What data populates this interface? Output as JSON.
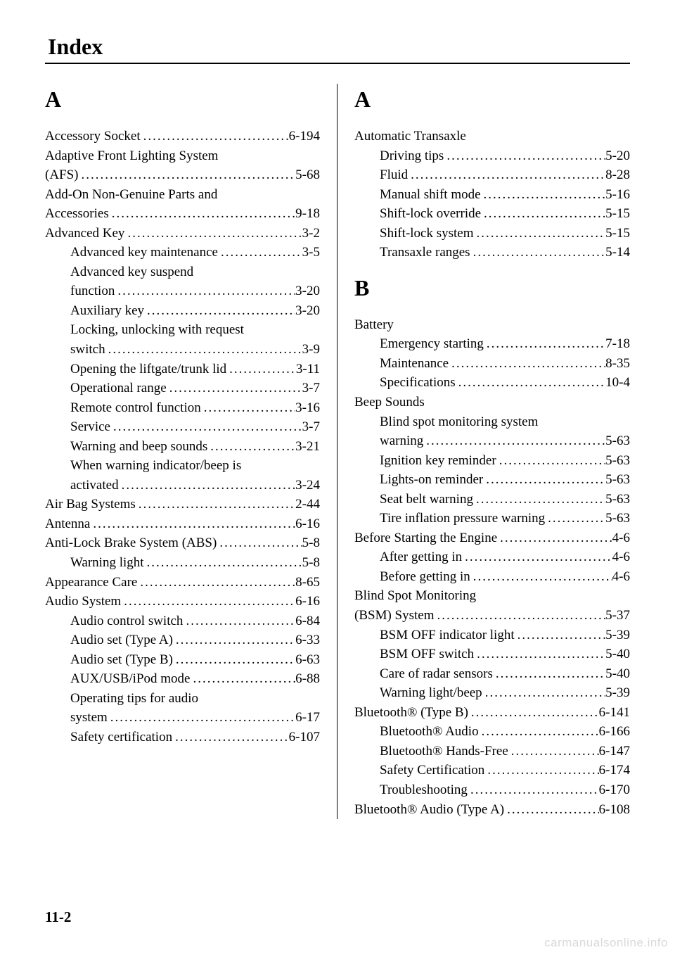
{
  "title": "Index",
  "page_number": "11-2",
  "watermark": "carmanualsonline.info",
  "columns": {
    "left": [
      {
        "type": "letter",
        "text": "A"
      },
      {
        "type": "entry",
        "label": "Accessory Socket",
        "page": "6-194",
        "indent": 0
      },
      {
        "type": "entry",
        "label": "Adaptive Front Lighting System",
        "indent": 0,
        "noPage": true
      },
      {
        "type": "entry",
        "label": "(AFS)",
        "page": "5-68",
        "indent": 0
      },
      {
        "type": "entry",
        "label": "Add-On Non-Genuine Parts and",
        "indent": 0,
        "noPage": true
      },
      {
        "type": "entry",
        "label": "Accessories",
        "page": "9-18",
        "indent": 0
      },
      {
        "type": "entry",
        "label": "Advanced Key",
        "page": "3-2",
        "indent": 0
      },
      {
        "type": "entry",
        "label": "Advanced key maintenance",
        "page": "3-5",
        "indent": 1
      },
      {
        "type": "entry",
        "label": "Advanced key suspend",
        "indent": 1,
        "noPage": true
      },
      {
        "type": "entry",
        "label": "function",
        "page": "3-20",
        "indent": 1
      },
      {
        "type": "entry",
        "label": "Auxiliary key",
        "page": "3-20",
        "indent": 1
      },
      {
        "type": "entry",
        "label": "Locking, unlocking with request",
        "indent": 1,
        "noPage": true
      },
      {
        "type": "entry",
        "label": "switch",
        "page": "3-9",
        "indent": 1
      },
      {
        "type": "entry",
        "label": "Opening the liftgate/trunk lid",
        "page": "3-11",
        "indent": 1
      },
      {
        "type": "entry",
        "label": "Operational range",
        "page": "3-7",
        "indent": 1
      },
      {
        "type": "entry",
        "label": "Remote control function",
        "page": "3-16",
        "indent": 1
      },
      {
        "type": "entry",
        "label": "Service",
        "page": "3-7",
        "indent": 1
      },
      {
        "type": "entry",
        "label": "Warning and beep sounds",
        "page": "3-21",
        "indent": 1
      },
      {
        "type": "entry",
        "label": "When warning indicator/beep is",
        "indent": 1,
        "noPage": true
      },
      {
        "type": "entry",
        "label": "activated",
        "page": "3-24",
        "indent": 1
      },
      {
        "type": "entry",
        "label": "Air Bag Systems",
        "page": "2-44",
        "indent": 0
      },
      {
        "type": "entry",
        "label": "Antenna",
        "page": "6-16",
        "indent": 0
      },
      {
        "type": "entry",
        "label": "Anti-Lock Brake System (ABS)",
        "page": "5-8",
        "indent": 0
      },
      {
        "type": "entry",
        "label": "Warning light",
        "page": "5-8",
        "indent": 1
      },
      {
        "type": "entry",
        "label": "Appearance Care",
        "page": "8-65",
        "indent": 0
      },
      {
        "type": "entry",
        "label": "Audio System",
        "page": "6-16",
        "indent": 0
      },
      {
        "type": "entry",
        "label": "Audio control switch",
        "page": "6-84",
        "indent": 1
      },
      {
        "type": "entry",
        "label": "Audio set (Type A)",
        "page": "6-33",
        "indent": 1
      },
      {
        "type": "entry",
        "label": "Audio set (Type B)",
        "page": "6-63",
        "indent": 1
      },
      {
        "type": "entry",
        "label": "AUX/USB/iPod mode",
        "page": "6-88",
        "indent": 1
      },
      {
        "type": "entry",
        "label": "Operating tips for audio",
        "indent": 1,
        "noPage": true
      },
      {
        "type": "entry",
        "label": "system",
        "page": "6-17",
        "indent": 1
      },
      {
        "type": "entry",
        "label": "Safety certification",
        "page": "6-107",
        "indent": 1
      }
    ],
    "right": [
      {
        "type": "letter",
        "text": "A"
      },
      {
        "type": "entry",
        "label": "Automatic Transaxle",
        "indent": 0,
        "noPage": true
      },
      {
        "type": "entry",
        "label": "Driving tips",
        "page": "5-20",
        "indent": 1
      },
      {
        "type": "entry",
        "label": "Fluid",
        "page": "8-28",
        "indent": 1
      },
      {
        "type": "entry",
        "label": "Manual shift mode",
        "page": "5-16",
        "indent": 1
      },
      {
        "type": "entry",
        "label": "Shift-lock override",
        "page": "5-15",
        "indent": 1
      },
      {
        "type": "entry",
        "label": "Shift-lock system",
        "page": "5-15",
        "indent": 1
      },
      {
        "type": "entry",
        "label": "Transaxle ranges",
        "page": "5-14",
        "indent": 1
      },
      {
        "type": "letter",
        "text": "B",
        "mid": true
      },
      {
        "type": "entry",
        "label": "Battery",
        "indent": 0,
        "noPage": true
      },
      {
        "type": "entry",
        "label": "Emergency starting",
        "page": "7-18",
        "indent": 1
      },
      {
        "type": "entry",
        "label": "Maintenance",
        "page": "8-35",
        "indent": 1
      },
      {
        "type": "entry",
        "label": "Specifications",
        "page": "10-4",
        "indent": 1
      },
      {
        "type": "entry",
        "label": "Beep Sounds",
        "indent": 0,
        "noPage": true
      },
      {
        "type": "entry",
        "label": "Blind spot monitoring system",
        "indent": 1,
        "noPage": true
      },
      {
        "type": "entry",
        "label": "warning",
        "page": "5-63",
        "indent": 1
      },
      {
        "type": "entry",
        "label": "Ignition key reminder",
        "page": "5-63",
        "indent": 1
      },
      {
        "type": "entry",
        "label": "Lights-on reminder",
        "page": "5-63",
        "indent": 1
      },
      {
        "type": "entry",
        "label": "Seat belt warning",
        "page": "5-63",
        "indent": 1
      },
      {
        "type": "entry",
        "label": "Tire inflation pressure warning",
        "page": "5-63",
        "indent": 1
      },
      {
        "type": "entry",
        "label": "Before Starting the Engine",
        "page": "4-6",
        "indent": 0
      },
      {
        "type": "entry",
        "label": "After getting in",
        "page": "4-6",
        "indent": 1
      },
      {
        "type": "entry",
        "label": "Before getting in",
        "page": "4-6",
        "indent": 1
      },
      {
        "type": "entry",
        "label": "Blind Spot Monitoring",
        "indent": 0,
        "noPage": true
      },
      {
        "type": "entry",
        "label": "(BSM) System",
        "page": "5-37",
        "indent": 0
      },
      {
        "type": "entry",
        "label": "BSM OFF indicator light",
        "page": "5-39",
        "indent": 1
      },
      {
        "type": "entry",
        "label": "BSM OFF switch",
        "page": "5-40",
        "indent": 1
      },
      {
        "type": "entry",
        "label": "Care of radar sensors",
        "page": "5-40",
        "indent": 1
      },
      {
        "type": "entry",
        "label": "Warning light/beep",
        "page": "5-39",
        "indent": 1
      },
      {
        "type": "entry",
        "label": "Bluetooth® (Type B)",
        "page": "6-141",
        "indent": 0
      },
      {
        "type": "entry",
        "label": "Bluetooth® Audio",
        "page": "6-166",
        "indent": 1
      },
      {
        "type": "entry",
        "label": "Bluetooth® Hands-Free",
        "page": "6-147",
        "indent": 1
      },
      {
        "type": "entry",
        "label": "Safety Certification",
        "page": "6-174",
        "indent": 1
      },
      {
        "type": "entry",
        "label": "Troubleshooting",
        "page": "6-170",
        "indent": 1
      },
      {
        "type": "entry",
        "label": "Bluetooth® Audio (Type A)",
        "page": "6-108",
        "indent": 0
      }
    ]
  }
}
